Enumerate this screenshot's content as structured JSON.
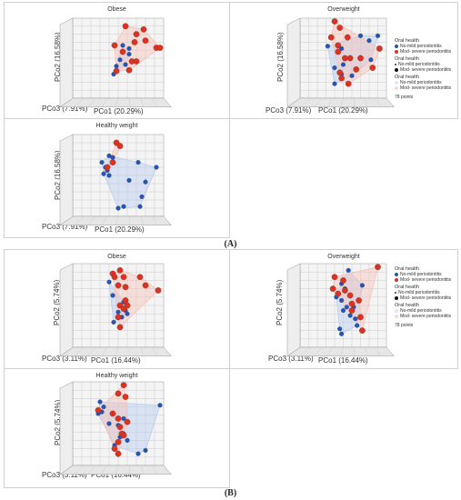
{
  "figure_labels": {
    "a": "(A)",
    "b": "(B)"
  },
  "legend": {
    "group1_title": "Oral health",
    "group2_title": "Oral health",
    "group3_title": "Oral health",
    "item_no_mild": "No-mild periodontitis",
    "item_mod_severe": "Mod- severe periodontitis",
    "points": "78 points"
  },
  "colors": {
    "no_mild": "#2255bb",
    "mod_severe": "#e03020",
    "hull_blue": "#b8ccf0",
    "hull_red": "#f6c1b8"
  },
  "chart_data": [
    {
      "type": "scatter",
      "figure": "A",
      "title": "Obese",
      "xlabel": "PCo1 (20.29%)",
      "ylabel": "PCo2 (16.58%)",
      "zlabel": "PCo3 (7.91%)",
      "series": [
        {
          "name": "No-mild periodontitis",
          "points": [
            [
              0.62,
              0.62
            ],
            [
              0.55,
              0.66
            ],
            [
              0.62,
              0.55
            ],
            [
              0.52,
              0.48
            ],
            [
              0.48,
              0.4
            ],
            [
              0.58,
              0.42
            ],
            [
              0.45,
              0.3
            ]
          ]
        },
        {
          "name": "Mod- severe periodontitis",
          "points": [
            [
              0.58,
              0.9
            ],
            [
              0.78,
              0.86
            ],
            [
              0.7,
              0.8
            ],
            [
              0.8,
              0.72
            ],
            [
              0.68,
              0.7
            ],
            [
              0.92,
              0.63
            ],
            [
              0.96,
              0.63
            ],
            [
              0.46,
              0.66
            ],
            [
              0.55,
              0.58
            ],
            [
              0.65,
              0.46
            ],
            [
              0.7,
              0.46
            ],
            [
              0.48,
              0.34
            ],
            [
              0.62,
              0.35
            ]
          ]
        }
      ]
    },
    {
      "type": "scatter",
      "figure": "A",
      "title": "Overweight",
      "xlabel": "PCo1 (20.29%)",
      "ylabel": "PCo2 (16.58%)",
      "zlabel": "PCo3 (7.91%)",
      "series": [
        {
          "name": "No-mild periodontitis",
          "points": [
            [
              0.7,
              0.78
            ],
            [
              0.9,
              0.78
            ],
            [
              0.8,
              0.72
            ],
            [
              0.32,
              0.65
            ],
            [
              0.48,
              0.62
            ],
            [
              0.82,
              0.48
            ],
            [
              0.5,
              0.42
            ],
            [
              0.4,
              0.38
            ],
            [
              0.48,
              0.3
            ],
            [
              0.6,
              0.28
            ],
            [
              0.4,
              0.18
            ]
          ]
        },
        {
          "name": "Mod- severe periodontitis",
          "points": [
            [
              0.4,
              0.96
            ],
            [
              0.46,
              0.88
            ],
            [
              0.36,
              0.76
            ],
            [
              0.55,
              0.76
            ],
            [
              0.44,
              0.66
            ],
            [
              0.44,
              0.58
            ],
            [
              0.52,
              0.5
            ],
            [
              0.58,
              0.5
            ],
            [
              0.7,
              0.5
            ],
            [
              0.46,
              0.32
            ],
            [
              0.65,
              0.36
            ],
            [
              0.92,
              0.62
            ],
            [
              0.84,
              0.38
            ],
            [
              0.48,
              0.25
            ],
            [
              0.56,
              0.18
            ]
          ]
        }
      ]
    },
    {
      "type": "scatter",
      "figure": "A",
      "title": "Healthy weight",
      "xlabel": "PCo1 (20.29%)",
      "ylabel": "PCo2 (16.58%)",
      "zlabel": "PCo3 (7.91%)",
      "series": [
        {
          "name": "No-mild periodontitis",
          "points": [
            [
              0.4,
              0.74
            ],
            [
              0.44,
              0.72
            ],
            [
              0.32,
              0.66
            ],
            [
              0.36,
              0.6
            ],
            [
              0.38,
              0.56
            ],
            [
              0.34,
              0.52
            ],
            [
              0.4,
              0.5
            ],
            [
              0.72,
              0.66
            ],
            [
              0.92,
              0.6
            ],
            [
              0.62,
              0.44
            ],
            [
              0.8,
              0.42
            ],
            [
              0.76,
              0.24
            ],
            [
              0.74,
              0.12
            ],
            [
              0.56,
              0.12
            ],
            [
              0.5,
              0.1
            ]
          ]
        },
        {
          "name": "Mod- severe periodontitis",
          "points": [
            [
              0.48,
              0.9
            ],
            [
              0.52,
              0.86
            ],
            [
              0.44,
              0.66
            ],
            [
              0.38,
              0.6
            ]
          ]
        }
      ]
    },
    {
      "type": "scatter",
      "figure": "B",
      "title": "Obese",
      "xlabel": "PCo1 (16.44%)",
      "ylabel": "PCo2 (5.74%)",
      "zlabel": "PCo3 (3.11%)",
      "series": [
        {
          "name": "No-mild periodontitis",
          "points": [
            [
              0.4,
              0.78
            ],
            [
              0.44,
              0.62
            ],
            [
              0.56,
              0.54
            ],
            [
              0.5,
              0.42
            ],
            [
              0.58,
              0.44
            ],
            [
              0.45,
              0.3
            ],
            [
              0.54,
              0.36
            ],
            [
              0.6,
              0.4
            ]
          ]
        },
        {
          "name": "Mod- severe periodontitis",
          "points": [
            [
              0.44,
              0.88
            ],
            [
              0.52,
              0.92
            ],
            [
              0.46,
              0.84
            ],
            [
              0.56,
              0.84
            ],
            [
              0.5,
              0.74
            ],
            [
              0.58,
              0.72
            ],
            [
              0.74,
              0.84
            ],
            [
              0.8,
              0.74
            ],
            [
              0.94,
              0.68
            ],
            [
              0.58,
              0.56
            ],
            [
              0.52,
              0.5
            ],
            [
              0.56,
              0.46
            ],
            [
              0.6,
              0.5
            ],
            [
              0.5,
              0.36
            ],
            [
              0.52,
              0.24
            ]
          ]
        }
      ]
    },
    {
      "type": "scatter",
      "figure": "B",
      "title": "Overweight",
      "xlabel": "PCo1 (16.44%)",
      "ylabel": "PCo2 (5.74%)",
      "zlabel": "PCo3 (3.11%)",
      "series": [
        {
          "name": "No-mild periodontitis",
          "points": [
            [
              0.56,
              0.92
            ],
            [
              0.48,
              0.76
            ],
            [
              0.52,
              0.7
            ],
            [
              0.42,
              0.6
            ],
            [
              0.48,
              0.56
            ],
            [
              0.62,
              0.48
            ],
            [
              0.54,
              0.48
            ],
            [
              0.5,
              0.44
            ],
            [
              0.58,
              0.38
            ],
            [
              0.64,
              0.34
            ],
            [
              0.66,
              0.26
            ],
            [
              0.46,
              0.22
            ],
            [
              0.48,
              0.16
            ],
            [
              0.72,
              0.74
            ]
          ]
        },
        {
          "name": "Mod- severe periodontitis",
          "points": [
            [
              0.9,
              0.96
            ],
            [
              0.4,
              0.84
            ],
            [
              0.5,
              0.8
            ],
            [
              0.38,
              0.7
            ],
            [
              0.52,
              0.68
            ],
            [
              0.44,
              0.64
            ],
            [
              0.58,
              0.62
            ],
            [
              0.68,
              0.56
            ],
            [
              0.6,
              0.52
            ],
            [
              0.6,
              0.44
            ],
            [
              0.7,
              0.36
            ],
            [
              0.72,
              0.2
            ]
          ]
        }
      ]
    },
    {
      "type": "scatter",
      "figure": "B",
      "title": "Healthy weight",
      "xlabel": "PCo1 (16.44%)",
      "ylabel": "PCo2 (5.74%)",
      "zlabel": "PCo3 (3.11%)",
      "series": [
        {
          "name": "No-mild periodontitis",
          "points": [
            [
              0.3,
              0.76
            ],
            [
              0.34,
              0.7
            ],
            [
              0.28,
              0.62
            ],
            [
              0.32,
              0.64
            ],
            [
              0.96,
              0.72
            ],
            [
              0.56,
              0.56
            ],
            [
              0.5,
              0.48
            ],
            [
              0.56,
              0.38
            ],
            [
              0.52,
              0.34
            ],
            [
              0.46,
              0.24
            ],
            [
              0.6,
              0.3
            ],
            [
              0.8,
              0.18
            ],
            [
              0.72,
              0.14
            ],
            [
              0.4,
              0.5
            ]
          ]
        },
        {
          "name": "Mod- severe periodontitis",
          "points": [
            [
              0.56,
              0.96
            ],
            [
              0.5,
              0.86
            ],
            [
              0.58,
              0.82
            ],
            [
              0.28,
              0.66
            ],
            [
              0.44,
              0.62
            ],
            [
              0.5,
              0.56
            ],
            [
              0.6,
              0.52
            ],
            [
              0.52,
              0.46
            ],
            [
              0.54,
              0.38
            ],
            [
              0.5,
              0.28
            ],
            [
              0.46,
              0.2
            ],
            [
              0.5,
              0.14
            ],
            [
              0.56,
              0.36
            ]
          ]
        }
      ]
    }
  ]
}
